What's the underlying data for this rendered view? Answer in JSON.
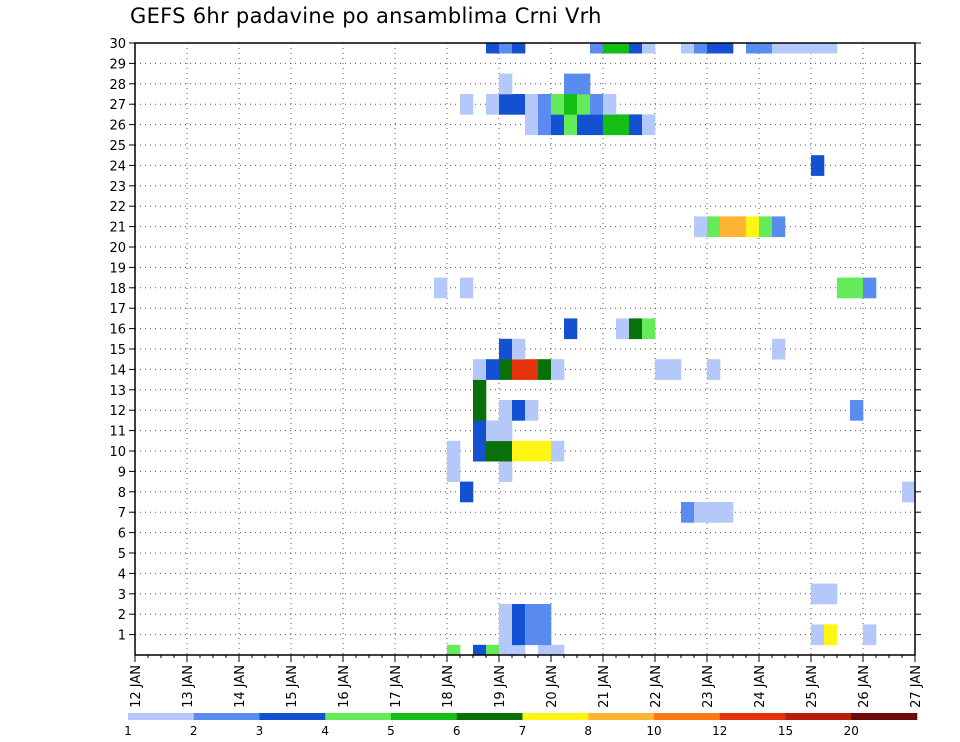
{
  "chart_data": {
    "type": "heatmap",
    "title": "GEFS 6hr padavine po ansamblima Crni Vrh",
    "xlabel": "",
    "ylabel": "",
    "x_tick_labels": [
      "12 JAN",
      "13 JAN",
      "14 JAN",
      "15 JAN",
      "16 JAN",
      "17 JAN",
      "18 JAN",
      "19 JAN",
      "20 JAN",
      "21 JAN",
      "22 JAN",
      "23 JAN",
      "24 JAN",
      "25 JAN",
      "26 JAN",
      "27 JAN"
    ],
    "y_tick_labels": [
      "1",
      "2",
      "3",
      "4",
      "5",
      "6",
      "7",
      "8",
      "9",
      "10",
      "11",
      "12",
      "13",
      "14",
      "15",
      "16",
      "17",
      "18",
      "19",
      "20",
      "21",
      "22",
      "23",
      "24",
      "25",
      "26",
      "27",
      "28",
      "29",
      "30"
    ],
    "x_range_days": [
      12,
      27
    ],
    "y_range": [
      0,
      30
    ],
    "grid": true,
    "colorbar": {
      "labels": [
        "1",
        "2",
        "3",
        "4",
        "5",
        "6",
        "7",
        "8",
        "10",
        "12",
        "15",
        "20"
      ],
      "colors": [
        "#b4c8fa",
        "#5a8cf0",
        "#1450d2",
        "#64eb5a",
        "#14be14",
        "#0a700a",
        "#fff514",
        "#ffb432",
        "#ff7814",
        "#e6320a",
        "#b41e0a",
        "#6e0a0a"
      ]
    },
    "cells": [
      {
        "d": 19.75,
        "m": 0,
        "l": 0
      },
      {
        "d": 20.0,
        "m": 0,
        "l": 0
      },
      {
        "d": 18.0,
        "m": 0,
        "l": 3
      },
      {
        "d": 18.5,
        "m": 0,
        "l": 2
      },
      {
        "d": 18.75,
        "m": 0,
        "l": 3
      },
      {
        "d": 19.0,
        "m": 0,
        "l": 0
      },
      {
        "d": 19.25,
        "m": 0,
        "l": 0
      },
      {
        "d": 19.0,
        "m": 1,
        "l": 0
      },
      {
        "d": 19.25,
        "m": 1,
        "l": 2
      },
      {
        "d": 19.5,
        "m": 1,
        "l": 1
      },
      {
        "d": 19.75,
        "m": 1,
        "l": 1
      },
      {
        "d": 19.0,
        "m": 2,
        "l": 0
      },
      {
        "d": 19.25,
        "m": 2,
        "l": 2
      },
      {
        "d": 19.5,
        "m": 2,
        "l": 1
      },
      {
        "d": 19.75,
        "m": 2,
        "l": 1
      },
      {
        "d": 25.0,
        "m": 1,
        "l": 0
      },
      {
        "d": 25.25,
        "m": 1,
        "l": 6
      },
      {
        "d": 26.0,
        "m": 1,
        "l": 0
      },
      {
        "d": 25.0,
        "m": 3,
        "l": 0
      },
      {
        "d": 25.25,
        "m": 3,
        "l": 0
      },
      {
        "d": 22.5,
        "m": 7,
        "l": 1
      },
      {
        "d": 22.75,
        "m": 7,
        "l": 0
      },
      {
        "d": 23.0,
        "m": 7,
        "l": 0
      },
      {
        "d": 23.25,
        "m": 7,
        "l": 0
      },
      {
        "d": 18.25,
        "m": 8,
        "l": 2
      },
      {
        "d": 26.75,
        "m": 8,
        "l": 0
      },
      {
        "d": 18.0,
        "m": 9,
        "l": 0
      },
      {
        "d": 19.0,
        "m": 9,
        "l": 0
      },
      {
        "d": 18.0,
        "m": 10,
        "l": 0
      },
      {
        "d": 18.5,
        "m": 10,
        "l": 2
      },
      {
        "d": 18.75,
        "m": 10,
        "l": 5
      },
      {
        "d": 19.0,
        "m": 10,
        "l": 5
      },
      {
        "d": 19.25,
        "m": 10,
        "l": 6
      },
      {
        "d": 19.5,
        "m": 10,
        "l": 6
      },
      {
        "d": 19.75,
        "m": 10,
        "l": 6
      },
      {
        "d": 20.0,
        "m": 10,
        "l": 0
      },
      {
        "d": 18.5,
        "m": 11,
        "l": 2
      },
      {
        "d": 18.75,
        "m": 11,
        "l": 0
      },
      {
        "d": 19.0,
        "m": 11,
        "l": 0
      },
      {
        "d": 18.5,
        "m": 12,
        "l": 5
      },
      {
        "d": 19.0,
        "m": 12,
        "l": 0
      },
      {
        "d": 19.25,
        "m": 12,
        "l": 2
      },
      {
        "d": 19.5,
        "m": 12,
        "l": 0
      },
      {
        "d": 25.75,
        "m": 12,
        "l": 1
      },
      {
        "d": 18.5,
        "m": 13,
        "l": 5
      },
      {
        "d": 18.5,
        "m": 14,
        "l": 0
      },
      {
        "d": 18.75,
        "m": 14,
        "l": 2
      },
      {
        "d": 19.0,
        "m": 14,
        "l": 5
      },
      {
        "d": 19.25,
        "m": 14,
        "l": 9
      },
      {
        "d": 19.5,
        "m": 14,
        "l": 9
      },
      {
        "d": 19.75,
        "m": 14,
        "l": 5
      },
      {
        "d": 20.0,
        "m": 14,
        "l": 0
      },
      {
        "d": 22.0,
        "m": 14,
        "l": 0
      },
      {
        "d": 22.25,
        "m": 14,
        "l": 0
      },
      {
        "d": 23.0,
        "m": 14,
        "l": 0
      },
      {
        "d": 19.0,
        "m": 15,
        "l": 2
      },
      {
        "d": 19.25,
        "m": 15,
        "l": 0
      },
      {
        "d": 24.25,
        "m": 15,
        "l": 0
      },
      {
        "d": 20.25,
        "m": 16,
        "l": 2
      },
      {
        "d": 21.25,
        "m": 16,
        "l": 0
      },
      {
        "d": 21.5,
        "m": 16,
        "l": 5
      },
      {
        "d": 21.75,
        "m": 16,
        "l": 3
      },
      {
        "d": 17.75,
        "m": 18,
        "l": 0
      },
      {
        "d": 18.25,
        "m": 18,
        "l": 0
      },
      {
        "d": 25.5,
        "m": 18,
        "l": 3
      },
      {
        "d": 25.75,
        "m": 18,
        "l": 3
      },
      {
        "d": 26.0,
        "m": 18,
        "l": 1
      },
      {
        "d": 22.75,
        "m": 21,
        "l": 0
      },
      {
        "d": 23.0,
        "m": 21,
        "l": 3
      },
      {
        "d": 23.25,
        "m": 21,
        "l": 7
      },
      {
        "d": 23.5,
        "m": 21,
        "l": 7
      },
      {
        "d": 23.75,
        "m": 21,
        "l": 6
      },
      {
        "d": 24.0,
        "m": 21,
        "l": 3
      },
      {
        "d": 24.25,
        "m": 21,
        "l": 1
      },
      {
        "d": 25.0,
        "m": 24,
        "l": 2
      },
      {
        "d": 19.5,
        "m": 26,
        "l": 0
      },
      {
        "d": 19.75,
        "m": 26,
        "l": 1
      },
      {
        "d": 20.0,
        "m": 26,
        "l": 2
      },
      {
        "d": 20.25,
        "m": 26,
        "l": 3
      },
      {
        "d": 20.5,
        "m": 26,
        "l": 2
      },
      {
        "d": 20.75,
        "m": 26,
        "l": 2
      },
      {
        "d": 21.0,
        "m": 26,
        "l": 4
      },
      {
        "d": 21.25,
        "m": 26,
        "l": 4
      },
      {
        "d": 21.5,
        "m": 26,
        "l": 2
      },
      {
        "d": 21.75,
        "m": 26,
        "l": 0
      },
      {
        "d": 18.25,
        "m": 27,
        "l": 0
      },
      {
        "d": 18.75,
        "m": 27,
        "l": 0
      },
      {
        "d": 19.0,
        "m": 27,
        "l": 2
      },
      {
        "d": 19.25,
        "m": 27,
        "l": 2
      },
      {
        "d": 19.5,
        "m": 27,
        "l": 0
      },
      {
        "d": 19.75,
        "m": 27,
        "l": 1
      },
      {
        "d": 20.0,
        "m": 27,
        "l": 3
      },
      {
        "d": 20.25,
        "m": 27,
        "l": 4
      },
      {
        "d": 20.5,
        "m": 27,
        "l": 3
      },
      {
        "d": 20.75,
        "m": 27,
        "l": 1
      },
      {
        "d": 21.0,
        "m": 27,
        "l": 0
      },
      {
        "d": 19.0,
        "m": 28,
        "l": 0
      },
      {
        "d": 20.25,
        "m": 28,
        "l": 1
      },
      {
        "d": 20.5,
        "m": 28,
        "l": 1
      },
      {
        "d": 18.75,
        "m": 30,
        "l": 2
      },
      {
        "d": 19.0,
        "m": 30,
        "l": 1
      },
      {
        "d": 19.25,
        "m": 30,
        "l": 2
      },
      {
        "d": 20.75,
        "m": 30,
        "l": 1
      },
      {
        "d": 21.0,
        "m": 30,
        "l": 4
      },
      {
        "d": 21.25,
        "m": 30,
        "l": 4
      },
      {
        "d": 21.5,
        "m": 30,
        "l": 2
      },
      {
        "d": 21.75,
        "m": 30,
        "l": 0
      },
      {
        "d": 22.5,
        "m": 30,
        "l": 0
      },
      {
        "d": 22.75,
        "m": 30,
        "l": 1
      },
      {
        "d": 23.0,
        "m": 30,
        "l": 2
      },
      {
        "d": 23.25,
        "m": 30,
        "l": 2
      },
      {
        "d": 23.75,
        "m": 30,
        "l": 1
      },
      {
        "d": 24.0,
        "m": 30,
        "l": 1
      },
      {
        "d": 24.25,
        "m": 30,
        "l": 0
      },
      {
        "d": 24.5,
        "m": 30,
        "l": 0
      },
      {
        "d": 24.75,
        "m": 30,
        "l": 0
      },
      {
        "d": 25.0,
        "m": 30,
        "l": 0
      },
      {
        "d": 25.25,
        "m": 30,
        "l": 0
      }
    ]
  }
}
